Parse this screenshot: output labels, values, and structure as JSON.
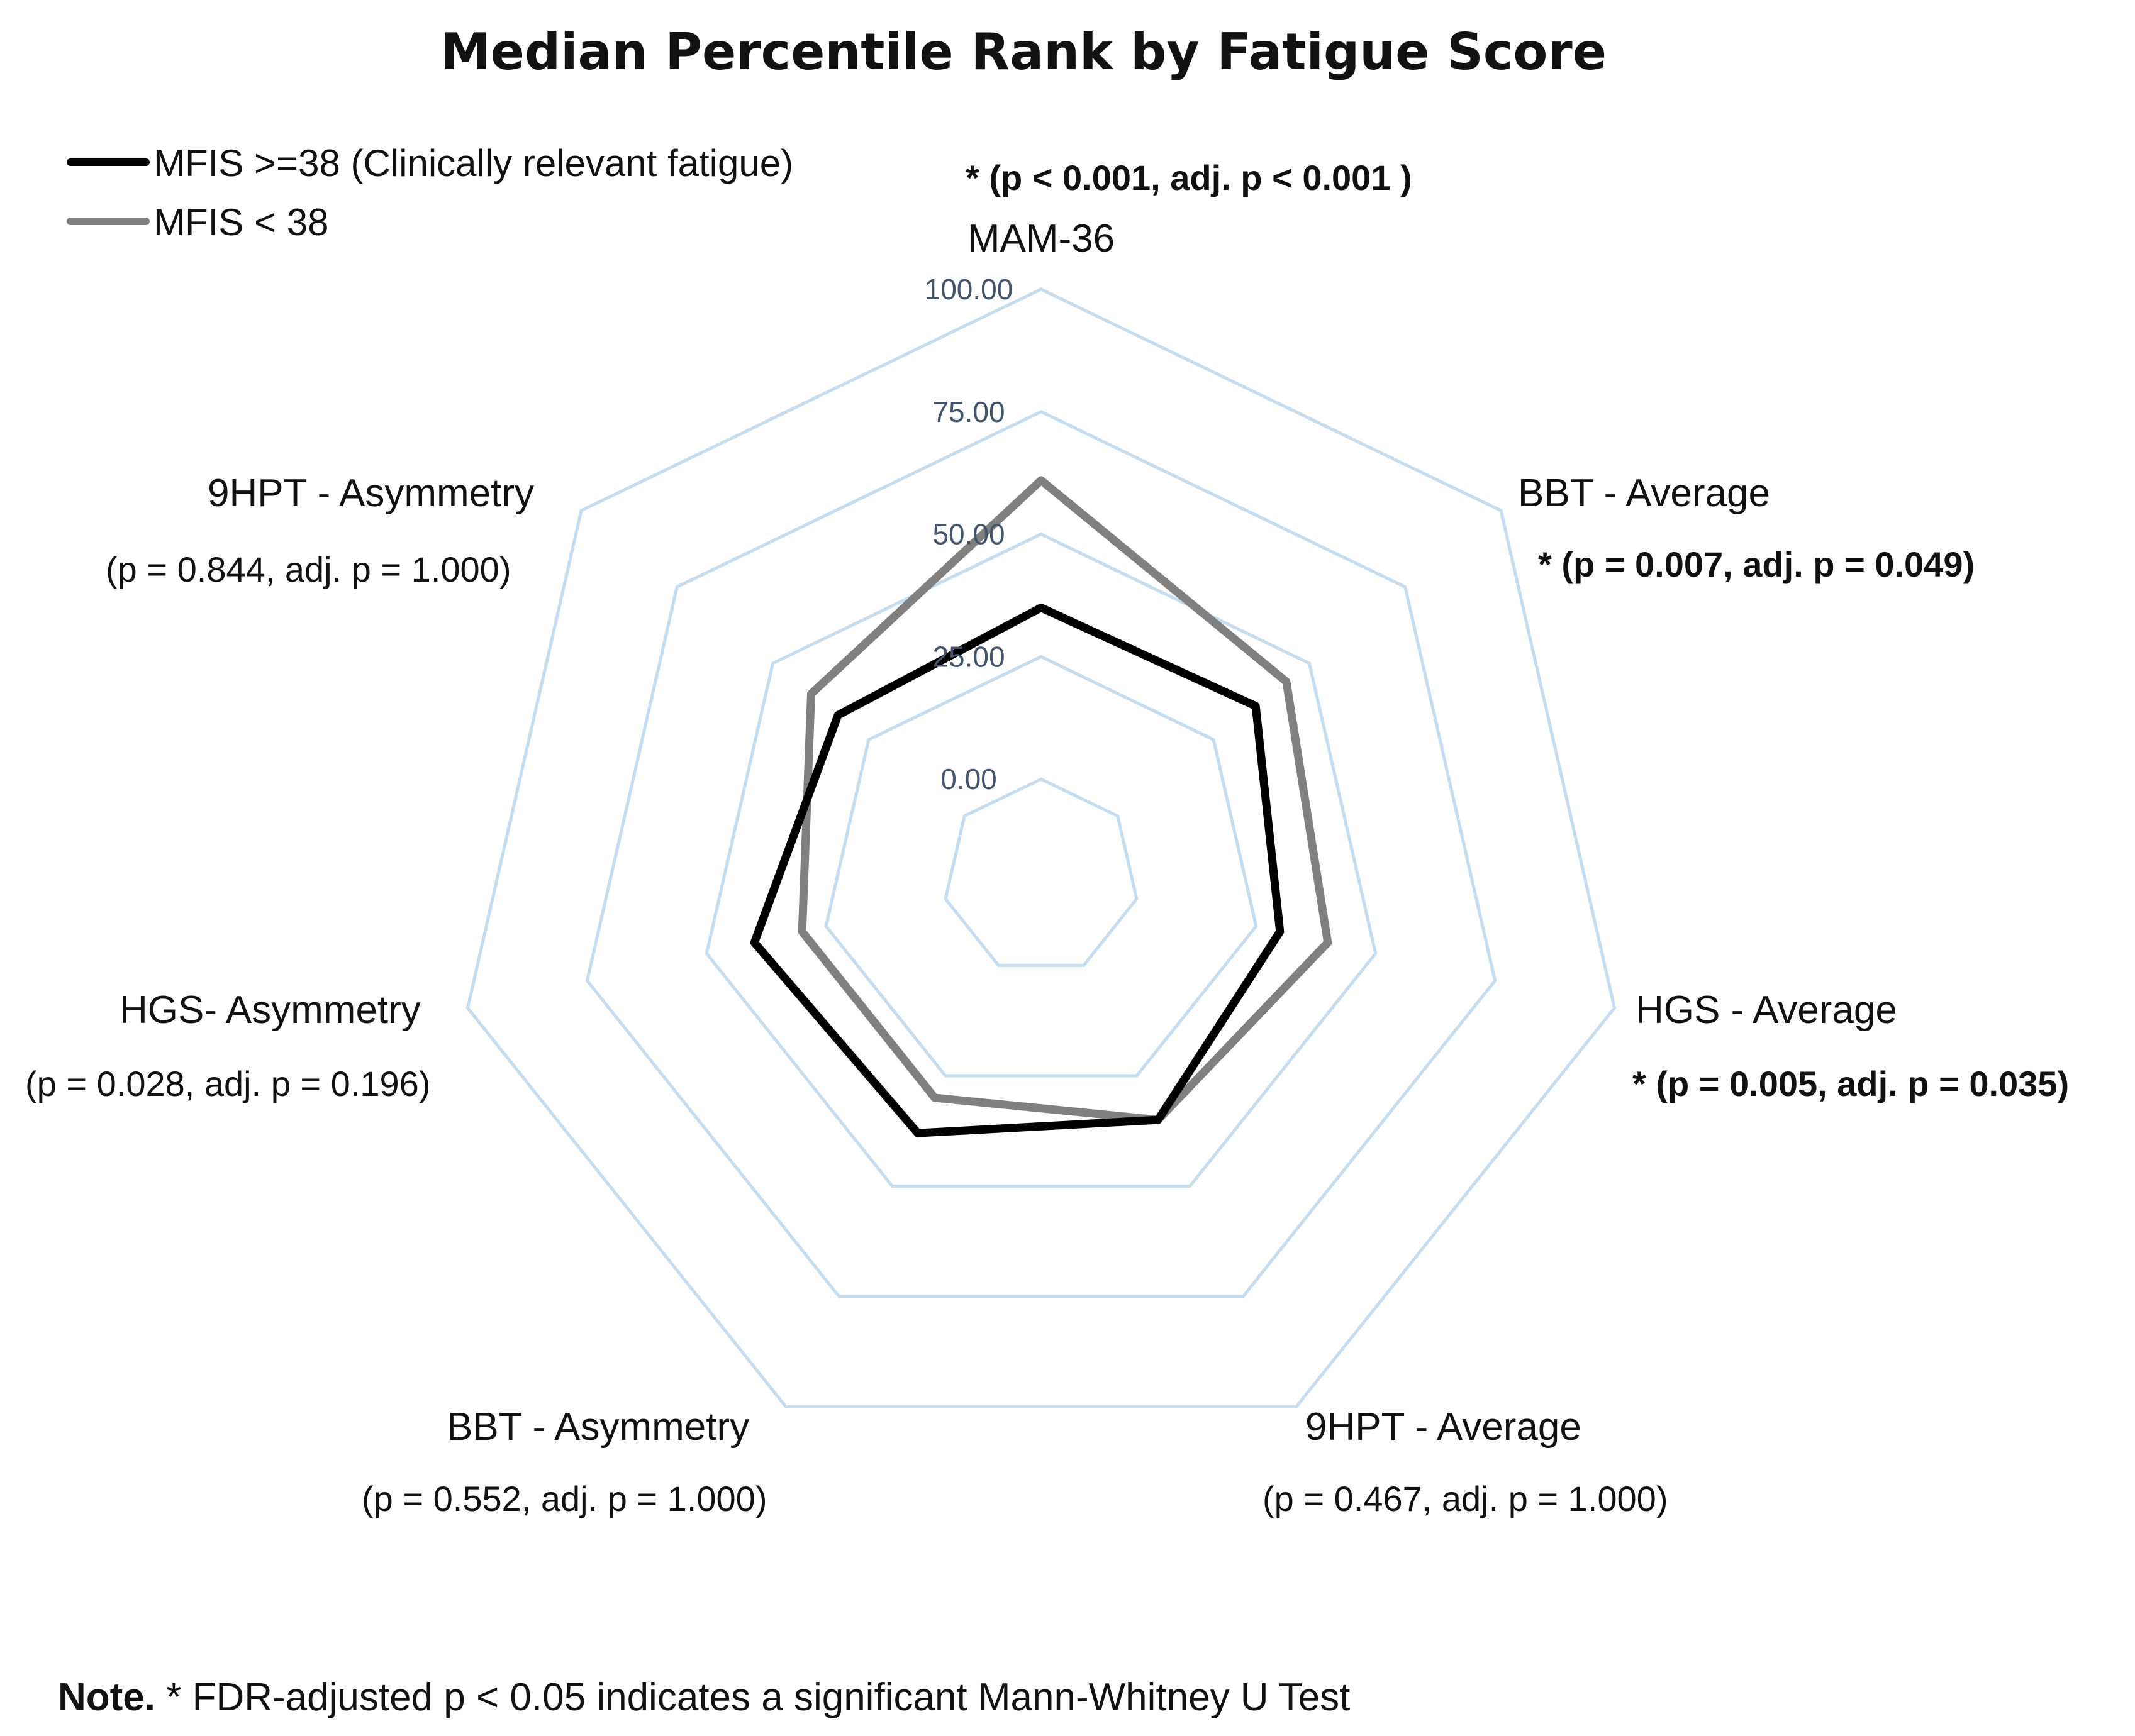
{
  "chart_data": {
    "type": "radar",
    "title": "Median Percentile Rank by Fatigue Score",
    "axes": [
      {
        "label": "MAM-36",
        "pvalue": "* (p < 0.001, adj. p < 0.001 )",
        "significant": true
      },
      {
        "label": "BBT - Average",
        "pvalue": "* (p = 0.007, adj. p = 0.049)",
        "significant": true
      },
      {
        "label": "HGS - Average",
        "pvalue": "* (p = 0.005, adj.  p = 0.035)",
        "significant": true
      },
      {
        "label": "9HPT - Average",
        "pvalue": "(p = 0.467, adj. p = 1.000)",
        "significant": false
      },
      {
        "label": "BBT - Asymmetry",
        "pvalue": "(p = 0.552, adj. p = 1.000)",
        "significant": false
      },
      {
        "label": "HGS- Asymmetry",
        "pvalue": "(p = 0.028, adj. p = 0.196)",
        "significant": false
      },
      {
        "label": "9HPT - Asymmetry",
        "pvalue": "(p = 0.844, adj. p = 1.000)",
        "significant": false
      }
    ],
    "rmin": -20,
    "rmax": 100,
    "ticks": [
      {
        "value": 0,
        "label": "0.00"
      },
      {
        "value": 25,
        "label": "25.00"
      },
      {
        "value": 50,
        "label": "50.00"
      },
      {
        "value": 75,
        "label": "75.00"
      },
      {
        "value": 100,
        "label": "100.00"
      }
    ],
    "series": [
      {
        "name": "MFIS < 38",
        "color": "#808080",
        "values": [
          61,
          44,
          40,
          35,
          30,
          30,
          40
        ]
      },
      {
        "name": "MFIS >=38 (Clinically  relevant fatigue)",
        "color": "#000000",
        "values": [
          35,
          36,
          30,
          35,
          38,
          40,
          33
        ]
      }
    ],
    "legend": [
      {
        "label": "MFIS >=38 (Clinically  relevant fatigue)",
        "color": "#000000"
      },
      {
        "label": "MFIS < 38",
        "color": "#808080"
      }
    ],
    "grid_color": "#c6dcef",
    "note_bold": "Note.",
    "note_text": " * FDR-adjusted p < 0.05 indicates a significant Mann-Whitney U Test"
  }
}
